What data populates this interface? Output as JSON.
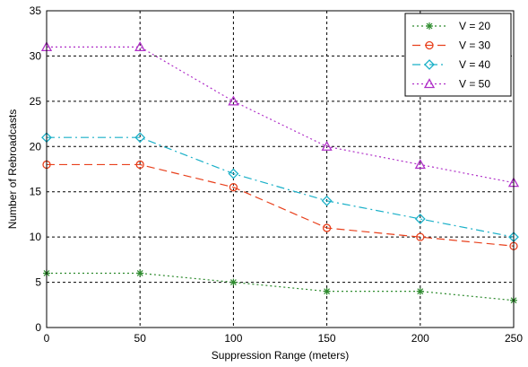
{
  "chart_data": {
    "type": "line",
    "xlabel": "Suppression Range (meters)",
    "ylabel": "Number of Rebroadcasts",
    "x": [
      0,
      50,
      100,
      150,
      200,
      250
    ],
    "xlim": [
      0,
      250
    ],
    "ylim": [
      0,
      35
    ],
    "xticks": [
      "0",
      "50",
      "100",
      "150",
      "200",
      "250"
    ],
    "yticks": [
      "0",
      "5",
      "10",
      "15",
      "20",
      "25",
      "30",
      "35"
    ],
    "grid": true,
    "legend_position": "top-right",
    "series": [
      {
        "name": "V = 20",
        "values": [
          6,
          6,
          5,
          4,
          4,
          3
        ],
        "color": "#2e8b2e",
        "marker": "asterisk",
        "dash": "dotted"
      },
      {
        "name": "V = 30",
        "values": [
          18,
          18,
          15.5,
          11,
          10,
          9
        ],
        "color": "#e8401c",
        "marker": "circle",
        "dash": "dashed"
      },
      {
        "name": "V = 40",
        "values": [
          21,
          21,
          17,
          14,
          12,
          10
        ],
        "color": "#1ab0c8",
        "marker": "diamond",
        "dash": "dashdot"
      },
      {
        "name": "V = 50",
        "values": [
          31,
          31,
          25,
          20,
          18,
          16
        ],
        "color": "#b030c8",
        "marker": "triangle",
        "dash": "dotted"
      }
    ]
  }
}
